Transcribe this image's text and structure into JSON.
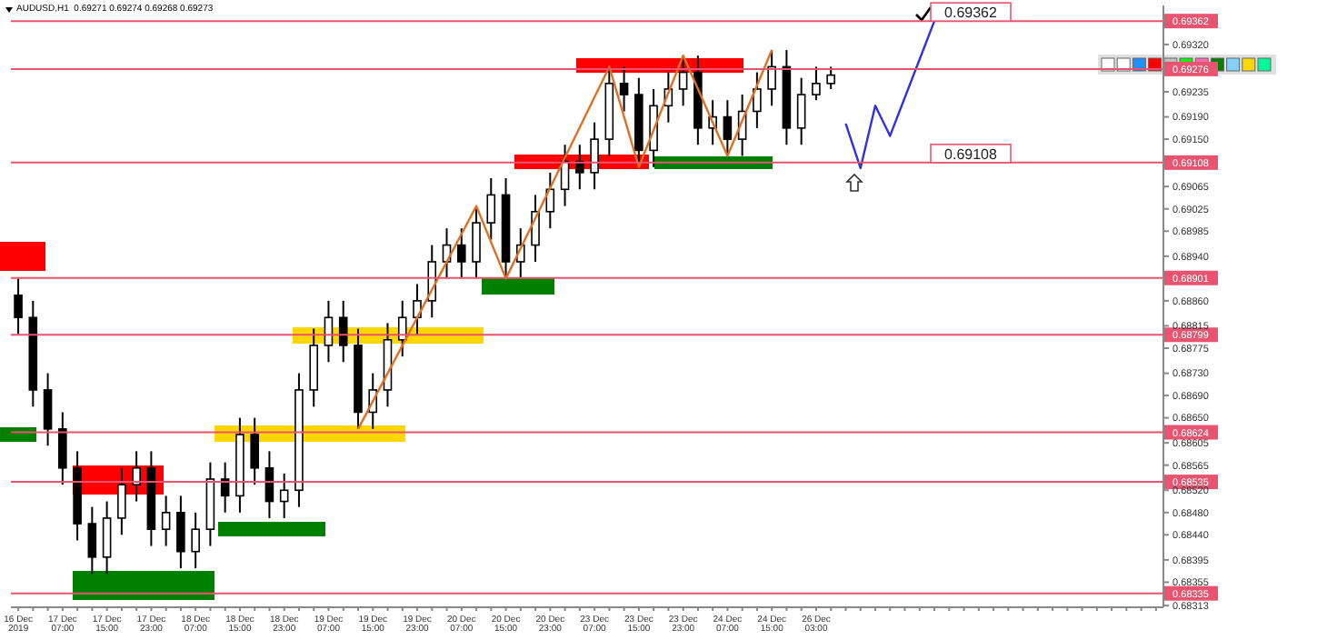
{
  "chart_data": {
    "type": "candlestick",
    "title": "AUDUSD,H1  0.69271 0.69274 0.69268 0.69273",
    "categories": [
      "16 Dec 2019",
      null,
      null,
      "17 Dec 07:00",
      null,
      null,
      "17 Dec 15:00",
      null,
      null,
      "17 Dec 23:00",
      null,
      null,
      "18 Dec 07:00",
      null,
      null,
      "18 Dec 15:00",
      null,
      null,
      "18 Dec 23:00",
      null,
      null,
      "19 Dec 07:00",
      null,
      null,
      "19 Dec 15:00",
      null,
      null,
      "19 Dec 23:00",
      null,
      null,
      "20 Dec 07:00",
      null,
      null,
      "20 Dec 15:00",
      null,
      null,
      "20 Dec 23:00",
      null,
      null,
      "23 Dec 07:00",
      null,
      null,
      "23 Dec 15:00",
      null,
      null,
      "23 Dec 23:00",
      null,
      null,
      "24 Dec 07:00",
      null,
      null,
      "24 Dec 15:00",
      null,
      null,
      "26 Dec 03:00",
      null,
      null,
      null,
      null,
      null,
      null,
      null,
      null,
      null,
      null,
      null,
      null,
      null,
      null,
      null,
      null,
      null,
      null,
      null,
      null,
      null,
      null,
      null
    ],
    "ohlc": [
      [
        0.6887,
        0.689,
        0.688,
        0.6883
      ],
      [
        0.6883,
        0.6886,
        0.6867,
        0.687
      ],
      [
        0.687,
        0.6873,
        0.686,
        0.6863
      ],
      [
        0.6863,
        0.6866,
        0.6853,
        0.6856
      ],
      [
        0.6856,
        0.6859,
        0.6843,
        0.6846
      ],
      [
        0.6846,
        0.6849,
        0.6837,
        0.684
      ],
      [
        0.684,
        0.685,
        0.6837,
        0.6847
      ],
      [
        0.6847,
        0.6856,
        0.6844,
        0.6853
      ],
      [
        0.6853,
        0.6859,
        0.685,
        0.6856
      ],
      [
        0.6856,
        0.6859,
        0.6842,
        0.6845
      ],
      [
        0.6845,
        0.6851,
        0.6842,
        0.6848
      ],
      [
        0.6848,
        0.6851,
        0.6838,
        0.6841
      ],
      [
        0.6841,
        0.6848,
        0.6838,
        0.6845
      ],
      [
        0.6845,
        0.6857,
        0.6842,
        0.6854
      ],
      [
        0.6854,
        0.6857,
        0.6848,
        0.6851
      ],
      [
        0.6851,
        0.6865,
        0.6848,
        0.6862
      ],
      [
        0.6862,
        0.6865,
        0.6853,
        0.6856
      ],
      [
        0.6856,
        0.6859,
        0.6847,
        0.685
      ],
      [
        0.685,
        0.6855,
        0.6847,
        0.6852
      ],
      [
        0.6852,
        0.6873,
        0.6849,
        0.687
      ],
      [
        0.687,
        0.6881,
        0.6867,
        0.6878
      ],
      [
        0.6878,
        0.6886,
        0.6875,
        0.6883
      ],
      [
        0.6883,
        0.6886,
        0.6875,
        0.6878
      ],
      [
        0.6878,
        0.6881,
        0.6863,
        0.6866
      ],
      [
        0.6866,
        0.6873,
        0.6863,
        0.687
      ],
      [
        0.687,
        0.6882,
        0.6867,
        0.6879
      ],
      [
        0.6879,
        0.6886,
        0.6876,
        0.6883
      ],
      [
        0.6883,
        0.6889,
        0.688,
        0.6886
      ],
      [
        0.6886,
        0.6896,
        0.6883,
        0.6893
      ],
      [
        0.6893,
        0.6899,
        0.689,
        0.6896
      ],
      [
        0.6896,
        0.6899,
        0.689,
        0.6893
      ],
      [
        0.6893,
        0.6903,
        0.689,
        0.69
      ],
      [
        0.69,
        0.6908,
        0.6897,
        0.6905
      ],
      [
        0.6905,
        0.6908,
        0.689,
        0.6893
      ],
      [
        0.6893,
        0.6899,
        0.689,
        0.6896
      ],
      [
        0.6896,
        0.6905,
        0.6893,
        0.6902
      ],
      [
        0.6902,
        0.6909,
        0.6899,
        0.6906
      ],
      [
        0.6906,
        0.6914,
        0.6903,
        0.6911
      ],
      [
        0.6911,
        0.6914,
        0.6906,
        0.6909
      ],
      [
        0.6909,
        0.6918,
        0.6906,
        0.6915
      ],
      [
        0.6915,
        0.6928,
        0.6912,
        0.6925
      ],
      [
        0.6925,
        0.6928,
        0.692,
        0.6923
      ],
      [
        0.6923,
        0.6926,
        0.691,
        0.6913
      ],
      [
        0.6913,
        0.6924,
        0.691,
        0.6921
      ],
      [
        0.6921,
        0.6927,
        0.6918,
        0.6924
      ],
      [
        0.6924,
        0.693,
        0.6921,
        0.6927
      ],
      [
        0.6927,
        0.693,
        0.6914,
        0.6917
      ],
      [
        0.6917,
        0.6922,
        0.6914,
        0.6919
      ],
      [
        0.6919,
        0.6922,
        0.6912,
        0.6915
      ],
      [
        0.6915,
        0.6923,
        0.6912,
        0.692
      ],
      [
        0.692,
        0.6927,
        0.6917,
        0.6924
      ],
      [
        0.6924,
        0.6931,
        0.6921,
        0.6928
      ],
      [
        0.6928,
        0.6931,
        0.6914,
        0.6917
      ],
      [
        0.6917,
        0.6926,
        0.6914,
        0.6923
      ],
      [
        0.6923,
        0.6928,
        0.6922,
        0.6925
      ],
      [
        0.6925,
        0.6928,
        0.6924,
        0.69265
      ],
      null,
      null,
      null,
      null,
      null,
      null,
      null,
      null,
      null,
      null,
      null,
      null,
      null,
      null,
      null,
      null,
      null,
      null,
      null,
      null,
      null,
      null
    ],
    "series": [
      {
        "type": "line",
        "color": "#e07020",
        "values": [
          null,
          null,
          null,
          null,
          null,
          null,
          null,
          null,
          null,
          null,
          null,
          null,
          null,
          null,
          null,
          null,
          null,
          null,
          null,
          null,
          null,
          null,
          null,
          0.6863,
          null,
          null,
          null,
          null,
          null,
          null,
          null,
          0.6903,
          null,
          0.689,
          null,
          null,
          null,
          null,
          null,
          null,
          0.6928,
          null,
          0.691,
          null,
          null,
          0.693,
          null,
          null,
          0.6912,
          null,
          null,
          0.6931,
          null,
          null,
          null,
          null,
          null,
          null,
          null,
          null,
          null,
          null,
          null,
          null,
          null,
          null,
          null,
          null,
          null,
          null,
          null,
          null,
          null,
          null,
          null,
          null,
          null,
          null
        ]
      },
      {
        "type": "line",
        "color": "#3030e0",
        "values": [
          null,
          null,
          null,
          null,
          null,
          null,
          null,
          null,
          null,
          null,
          null,
          null,
          null,
          null,
          null,
          null,
          null,
          null,
          null,
          null,
          null,
          null,
          null,
          null,
          null,
          null,
          null,
          null,
          null,
          null,
          null,
          null,
          null,
          null,
          null,
          null,
          null,
          null,
          null,
          null,
          null,
          null,
          null,
          null,
          null,
          null,
          null,
          null,
          null,
          null,
          null,
          null,
          null,
          null,
          null,
          null,
          0.69178,
          0.69098,
          0.6921,
          0.69156,
          null,
          null,
          0.69362,
          null,
          null,
          null,
          null,
          null,
          null,
          null,
          null,
          null,
          null,
          null,
          null,
          null,
          null,
          null
        ]
      }
    ],
    "ylim": [
      0.6831,
      0.6939
    ],
    "yticks": [
      {
        "value": 0.6932,
        "label": "0.69320"
      },
      {
        "value": 0.69235,
        "label": "0.69235"
      },
      {
        "value": 0.6919,
        "label": "0.69190"
      },
      {
        "value": 0.6915,
        "label": "0.69150"
      },
      {
        "value": 0.69065,
        "label": "0.69065"
      },
      {
        "value": 0.69025,
        "label": "0.69025"
      },
      {
        "value": 0.68985,
        "label": "0.68985"
      },
      {
        "value": 0.6894,
        "label": "0.68940"
      },
      {
        "value": 0.6886,
        "label": "0.68860"
      },
      {
        "value": 0.68815,
        "label": "0.68815"
      },
      {
        "value": 0.68775,
        "label": "0.68775"
      },
      {
        "value": 0.6873,
        "label": "0.68730"
      },
      {
        "value": 0.6869,
        "label": "0.68690"
      },
      {
        "value": 0.6865,
        "label": "0.68650"
      },
      {
        "value": 0.68605,
        "label": "0.68605"
      },
      {
        "value": 0.68565,
        "label": "0.68565"
      },
      {
        "value": 0.6852,
        "label": "0.68520"
      },
      {
        "value": 0.6848,
        "label": "0.68480"
      },
      {
        "value": 0.6844,
        "label": "0.68440"
      },
      {
        "value": 0.68395,
        "label": "0.68395"
      },
      {
        "value": 0.68355,
        "label": "0.68355"
      },
      {
        "value": 0.68313,
        "label": "0.68313"
      }
    ],
    "annotations": [
      {
        "text": "0.69362",
        "y": 0.69362
      },
      {
        "text": "0.69108",
        "y": 0.69108
      }
    ],
    "ref_lines": [
      {
        "axis": "y",
        "value": 0.69362,
        "label": "0.69362",
        "color": "#e8546f"
      },
      {
        "axis": "y",
        "value": 0.69276,
        "label": "0.69276",
        "color": "#e8546f"
      },
      {
        "axis": "y",
        "value": 0.69108,
        "label": "0.69108",
        "color": "#e8546f"
      },
      {
        "axis": "y",
        "value": 0.68901,
        "label": "0.68901",
        "color": "#e8546f"
      },
      {
        "axis": "y",
        "value": 0.68799,
        "label": "0.68799",
        "color": "#e8546f"
      },
      {
        "axis": "y",
        "value": 0.68624,
        "label": "0.68624",
        "color": "#e8546f"
      },
      {
        "axis": "y",
        "value": 0.68535,
        "label": "0.68535",
        "color": "#e8546f"
      },
      {
        "axis": "y",
        "value": 0.68335,
        "label": "0.68335",
        "color": "#e8546f"
      }
    ]
  }
}
